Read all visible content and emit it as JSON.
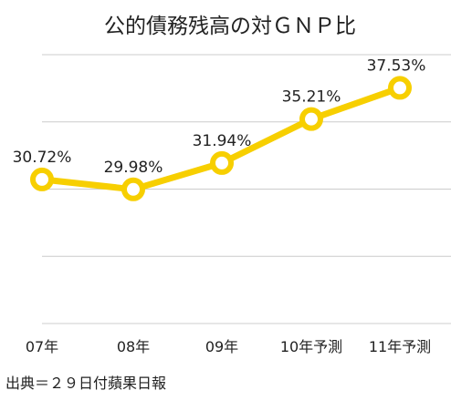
{
  "chart_data": {
    "type": "line",
    "title": "公的債務残高の対ＧＮＰ比",
    "categories": [
      "07年",
      "08年",
      "09年",
      "10年予測",
      "11年予測"
    ],
    "series": [
      {
        "values": [
          30.72,
          29.98,
          31.94,
          35.21,
          37.53
        ]
      }
    ],
    "data_labels": [
      "30.72%",
      "29.98%",
      "31.94%",
      "35.21%",
      "37.53%"
    ],
    "ylim": [
      20,
      40
    ],
    "grid": true,
    "line_color": "#f7cf00",
    "grid_color": "#cccccc",
    "source": "出典＝２９日付蘋果日報"
  }
}
